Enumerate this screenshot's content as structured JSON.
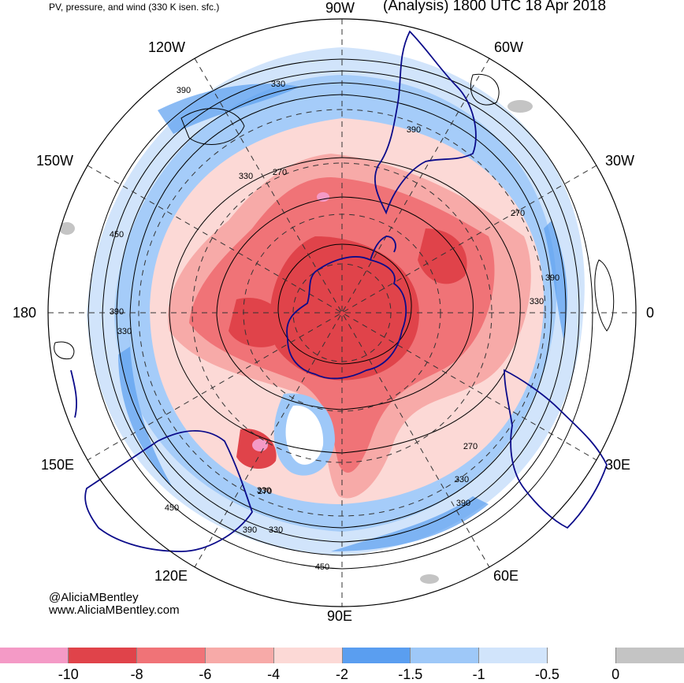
{
  "header": {
    "field_title": "PV, pressure, and wind (330 K isen. sfc.)",
    "valid_time": "(Analysis) 1800 UTC 18 Apr 2018"
  },
  "credits": {
    "handle": "@AliciaMBentley",
    "website": "www.AliciaMBentley.com"
  },
  "longitude_labels": {
    "w90": "90W",
    "w60": "60W",
    "w30": "30W",
    "e0": "0",
    "e30": "30E",
    "e60": "60E",
    "e90": "90E",
    "e120": "120E",
    "e150": "150E",
    "d180": "180",
    "w150": "150W",
    "w120": "120W"
  },
  "contour_labels": [
    "390",
    "330",
    "270",
    "330",
    "450",
    "390",
    "330",
    "270",
    "390",
    "330",
    "270",
    "330",
    "390",
    "270",
    "330",
    "390",
    "450",
    "330",
    "450",
    "390"
  ],
  "colorbar": {
    "ticks": [
      "-10",
      "-8",
      "-6",
      "-4",
      "-2",
      "-1.5",
      "-1",
      "-0.5",
      "0"
    ],
    "colors": [
      "#f49ac6",
      "#e0434a",
      "#f07377",
      "#f7aaa8",
      "#fcd9d6",
      "#5a9ef0",
      "#9ec8f8",
      "#d1e4fb",
      "#ffffff",
      "#c4c4c4"
    ]
  }
}
